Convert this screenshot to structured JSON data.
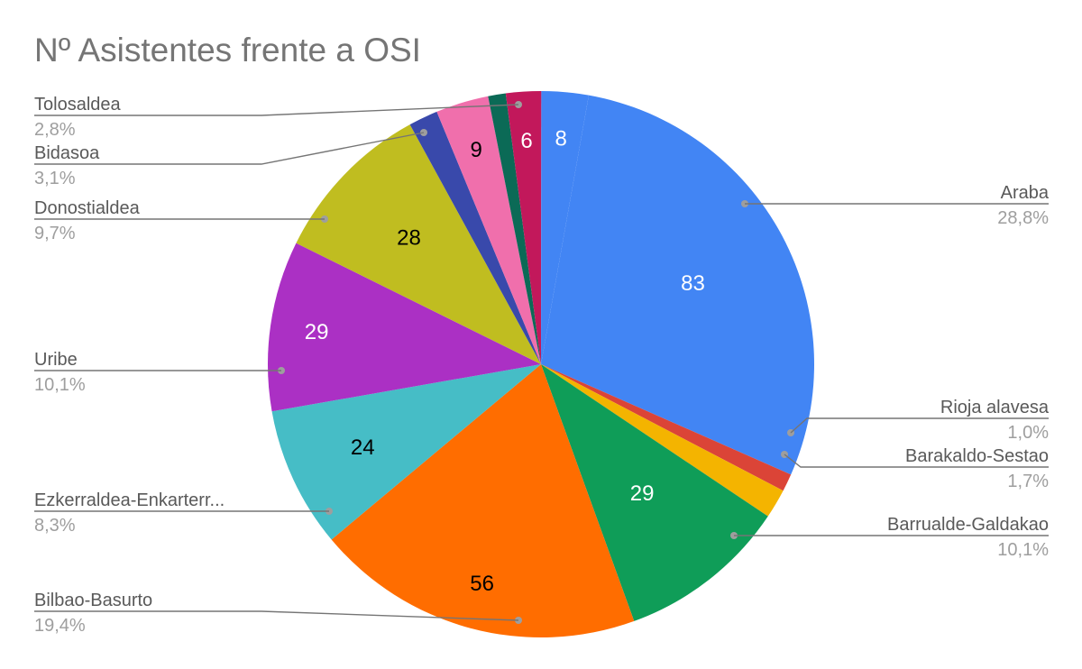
{
  "chart_data": {
    "type": "pie",
    "title": "Nº Asistentes frente a OSI",
    "slices": [
      {
        "name": "Araba",
        "value": 83,
        "percent": "28,8%",
        "color": "#4285f4",
        "value_color": "#ffffff"
      },
      {
        "name": "Rioja alavesa",
        "value": 3,
        "percent": "1,0%",
        "color": "#db4437",
        "value_color": "#ffffff"
      },
      {
        "name": "Barakaldo-Sestao",
        "value": 5,
        "percent": "1,7%",
        "color": "#f4b400",
        "value_color": "#ffffff"
      },
      {
        "name": "Barrualde-Galdakao",
        "value": 29,
        "percent": "10,1%",
        "color": "#0f9d58",
        "value_color": "#ffffff"
      },
      {
        "name": "Bilbao-Basurto",
        "value": 56,
        "percent": "19,4%",
        "color": "#ff6d00",
        "value_color": "#000000"
      },
      {
        "name": "Ezkerraldea-Enkarterr...",
        "value": 24,
        "percent": "8,3%",
        "color": "#46bdc6",
        "value_color": "#000000"
      },
      {
        "name": "Uribe",
        "value": 29,
        "percent": "10,1%",
        "color": "#ab30c4",
        "value_color": "#ffffff"
      },
      {
        "name": "Donostialdea",
        "value": 28,
        "percent": "9,7%",
        "color": "#c0bd20",
        "value_color": "#000000"
      },
      {
        "name": "",
        "value": 5,
        "percent": "",
        "color": "#3949ab",
        "value_color": "#ffffff"
      },
      {
        "name": "Bidasoa",
        "value": 9,
        "percent": "3,1%",
        "color": "#f06fac",
        "value_color": "#000000"
      },
      {
        "name": "",
        "value": 3,
        "percent": "",
        "color": "#0b6a56",
        "value_color": "#ffffff"
      },
      {
        "name": "",
        "value": 6,
        "percent": "",
        "color": "#c2185b",
        "value_color": "#ffffff"
      },
      {
        "name": "Tolosaldea",
        "value": 8,
        "percent": "2,8%",
        "color": "#4285f4",
        "value_color": "#ffffff"
      }
    ],
    "legend": "none"
  }
}
